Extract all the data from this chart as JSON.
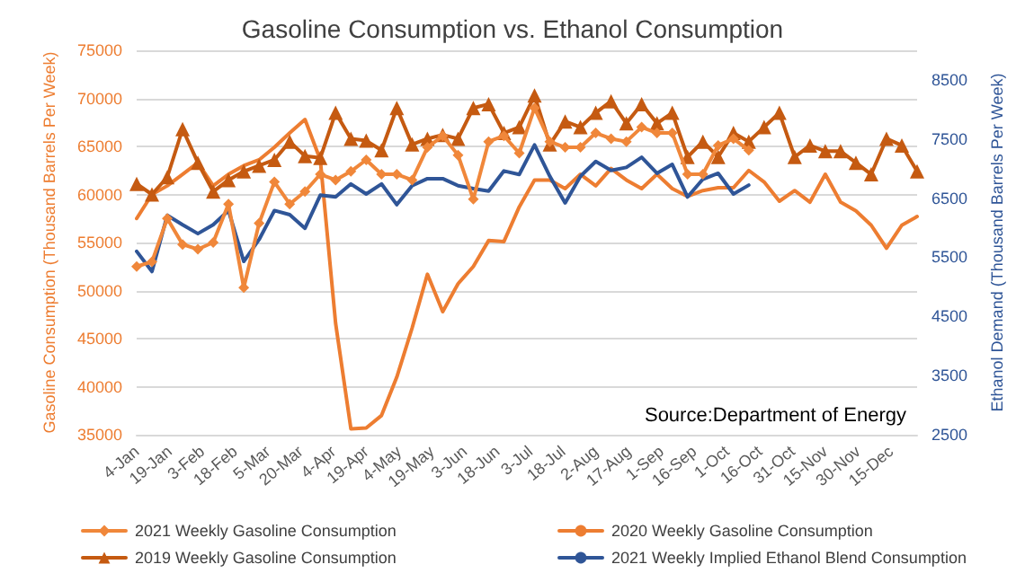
{
  "chart_data": {
    "type": "line",
    "title": "Gasoline Consumption vs. Ethanol Consumption",
    "ylabel": "Gasoline Consumption (Thousand Barrels Per Week)",
    "y2label": "Ethanol Demand (Thousand Barrels Per Week)",
    "x": [
      "--01-04",
      "--01-11",
      "--01-18",
      "--01-25",
      "--02-01",
      "--02-08",
      "--02-15",
      "--02-22",
      "--03-01",
      "--03-08",
      "--03-15",
      "--03-22",
      "--03-29",
      "--04-05",
      "--04-12",
      "--04-19",
      "--04-26",
      "--05-03",
      "--05-10",
      "--05-17",
      "--05-24",
      "--05-31",
      "--06-07",
      "--06-14",
      "--06-21",
      "--06-28",
      "--07-05",
      "--07-12",
      "--07-19",
      "--07-26",
      "--08-02",
      "--08-09",
      "--08-16",
      "--08-23",
      "--08-30",
      "--09-06",
      "--09-13",
      "--09-20",
      "--09-27",
      "--10-04",
      "--10-11",
      "--10-18",
      "--10-25",
      "--11-01",
      "--11-08",
      "--11-15",
      "--11-22",
      "--11-29",
      "--12-06",
      "--12-13",
      "--12-20",
      "--12-27"
    ],
    "xlim": [
      "--01-04",
      "--12-27"
    ],
    "xticks": [
      {
        "value": "--01-04",
        "label": "4-Jan"
      },
      {
        "value": "--01-19",
        "label": "19-Jan"
      },
      {
        "value": "--02-03",
        "label": "3-Feb"
      },
      {
        "value": "--02-18",
        "label": "18-Feb"
      },
      {
        "value": "--03-05",
        "label": "5-Mar"
      },
      {
        "value": "--03-20",
        "label": "20-Mar"
      },
      {
        "value": "--04-04",
        "label": "4-Apr"
      },
      {
        "value": "--04-19",
        "label": "19-Apr"
      },
      {
        "value": "--05-04",
        "label": "4-May"
      },
      {
        "value": "--05-19",
        "label": "19-May"
      },
      {
        "value": "--06-03",
        "label": "3-Jun"
      },
      {
        "value": "--06-18",
        "label": "18-Jun"
      },
      {
        "value": "--07-03",
        "label": "3-Jul"
      },
      {
        "value": "--07-18",
        "label": "18-Jul"
      },
      {
        "value": "--08-02",
        "label": "2-Aug"
      },
      {
        "value": "--08-17",
        "label": "17-Aug"
      },
      {
        "value": "--09-01",
        "label": "1-Sep"
      },
      {
        "value": "--09-16",
        "label": "16-Sep"
      },
      {
        "value": "--10-01",
        "label": "1-Oct"
      },
      {
        "value": "--10-16",
        "label": "16-Oct"
      },
      {
        "value": "--10-31",
        "label": "31-Oct"
      },
      {
        "value": "--11-15",
        "label": "15-Nov"
      },
      {
        "value": "--11-30",
        "label": "30-Nov"
      },
      {
        "value": "--12-15",
        "label": "15-Dec"
      }
    ],
    "ylim": [
      35000,
      75000
    ],
    "yticks": [
      35000,
      40000,
      45000,
      50000,
      55000,
      60000,
      65000,
      70000,
      75000
    ],
    "y2lim": [
      2500,
      9000
    ],
    "y2ticks": [
      2500,
      3500,
      4500,
      5500,
      6500,
      7500,
      8500
    ],
    "grid": "y",
    "legend": "bottom",
    "line_style": "solid",
    "annotations": [
      "Source:Department of Energy"
    ],
    "series": [
      {
        "name": "2021 Weekly Gasoline Consumption",
        "color": "#f0873a",
        "marker": "diamond",
        "values": [
          52500,
          53000,
          57500,
          54800,
          54300,
          55000,
          59000,
          50300,
          57000,
          61300,
          59000,
          60300,
          62100,
          61500,
          62400,
          63600,
          62100,
          62100,
          61500,
          64900,
          66100,
          64100,
          59500,
          65500,
          66100,
          64300,
          69000,
          65500,
          64900,
          64900,
          66400,
          65800,
          65500,
          67000,
          66400,
          66400,
          62100,
          62100,
          65100,
          65800,
          64600,
          null,
          null,
          null,
          null,
          null,
          null,
          null,
          null,
          null,
          null,
          null
        ]
      },
      {
        "name": "2020 Weekly Gasoline Consumption",
        "color": "#ed7d31",
        "marker": "none",
        "values": [
          57500,
          60000,
          60900,
          62100,
          63300,
          60900,
          62100,
          63000,
          63600,
          64900,
          66400,
          67800,
          63600,
          46600,
          35600,
          35700,
          37000,
          41000,
          46100,
          51700,
          47800,
          50700,
          52500,
          55200,
          55100,
          58700,
          61500,
          61500,
          60600,
          62100,
          60900,
          62700,
          61500,
          60600,
          62100,
          60600,
          59800,
          60400,
          60700,
          60700,
          62500,
          61300,
          59300,
          60400,
          59200,
          62100,
          59200,
          58300,
          56800,
          54400,
          56800,
          57700
        ]
      },
      {
        "name": "2019 Weekly Gasoline Consumption",
        "color": "#c55a11",
        "marker": "triangle",
        "values": [
          61100,
          60000,
          61800,
          66800,
          63300,
          60300,
          61500,
          62400,
          63000,
          63600,
          65500,
          64000,
          63800,
          68500,
          65800,
          65600,
          64600,
          69000,
          65200,
          65800,
          66200,
          65800,
          69000,
          69400,
          66400,
          67000,
          70300,
          65200,
          67600,
          67000,
          68500,
          69700,
          67400,
          69400,
          67400,
          68500,
          63900,
          65500,
          63900,
          66400,
          65500,
          67000,
          68500,
          63900,
          65100,
          64500,
          64500,
          63300,
          62100,
          65800,
          65100,
          62400
        ]
      },
      {
        "name": "2021 Weekly Implied Ethanol Blend Consumption",
        "color": "#2f5597",
        "marker": "none",
        "axis": "y2",
        "values": [
          5600,
          5260,
          6210,
          6050,
          5900,
          6050,
          6290,
          5430,
          5800,
          6290,
          6220,
          5990,
          6550,
          6520,
          6740,
          6570,
          6740,
          6390,
          6710,
          6830,
          6830,
          6710,
          6660,
          6620,
          6960,
          6900,
          7400,
          6870,
          6420,
          6870,
          7120,
          6970,
          7020,
          7190,
          6920,
          7070,
          6520,
          6820,
          6920,
          6570,
          6720,
          null,
          null,
          null,
          null,
          null,
          null,
          null,
          null,
          null,
          null,
          null
        ]
      }
    ]
  }
}
